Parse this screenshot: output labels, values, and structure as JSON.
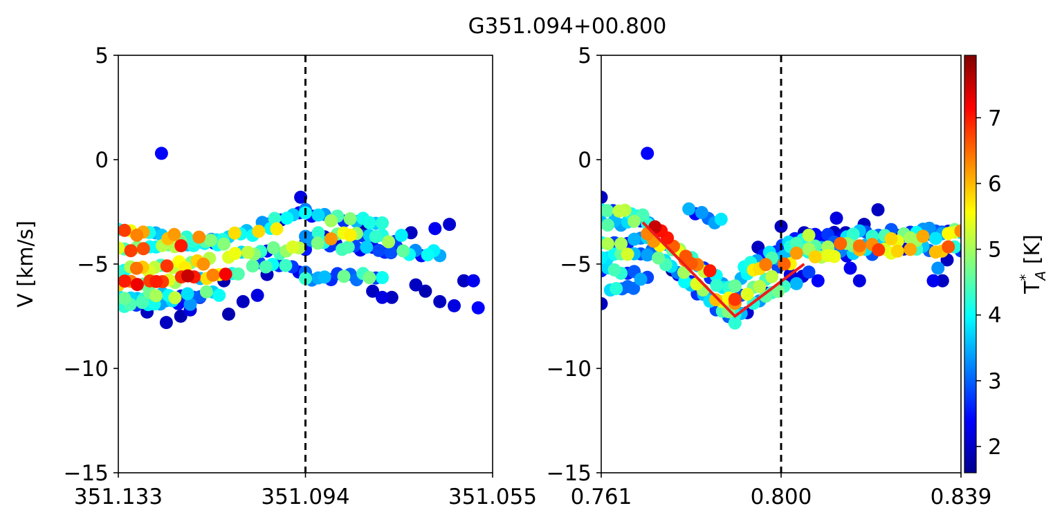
{
  "figure": {
    "title": "G351.094+00.800"
  },
  "chart_data": [
    {
      "type": "scatter",
      "panel": "left",
      "xlabel": "",
      "ylabel": "V [km/s]",
      "xlim": [
        351.133,
        351.055
      ],
      "ylim": [
        -15,
        5
      ],
      "xticks": [
        "351.133",
        "351.094",
        "351.055"
      ],
      "yticks": [
        "5",
        "0",
        "−5",
        "−10",
        "−15"
      ],
      "vline_x": 351.094,
      "grid": false,
      "colormap": "jet",
      "bands": [
        {
          "x0": 351.133,
          "x1": 351.111,
          "y0": -3.4,
          "y1": -4.0,
          "tmin": 2.5,
          "tmax": 6.8
        },
        {
          "x0": 351.133,
          "x1": 351.116,
          "y0": -4.4,
          "y1": -4.0,
          "tmin": 3.5,
          "tmax": 7.2
        },
        {
          "x0": 351.133,
          "x1": 351.114,
          "y0": -5.3,
          "y1": -4.9,
          "tmin": 3.0,
          "tmax": 7.0
        },
        {
          "x0": 351.133,
          "x1": 351.108,
          "y0": -5.9,
          "y1": -5.5,
          "tmin": 3.5,
          "tmax": 7.5
        },
        {
          "x0": 351.133,
          "x1": 351.112,
          "y0": -6.6,
          "y1": -6.4,
          "tmin": 2.5,
          "tmax": 5.5
        },
        {
          "x0": 351.133,
          "x1": 351.118,
          "y0": -6.9,
          "y1": -6.8,
          "tmin": 2.0,
          "tmax": 4.5
        },
        {
          "x0": 351.115,
          "x1": 351.1,
          "y0": -4.0,
          "y1": -3.2,
          "tmin": 2.5,
          "tmax": 6.0
        },
        {
          "x0": 351.11,
          "x1": 351.094,
          "y0": -4.6,
          "y1": -4.2,
          "tmin": 2.0,
          "tmax": 5.5
        },
        {
          "x0": 351.105,
          "x1": 351.094,
          "y0": -5.0,
          "y1": -5.3,
          "tmin": 2.0,
          "tmax": 4.8
        },
        {
          "x0": 351.103,
          "x1": 351.094,
          "y0": -3.0,
          "y1": -2.5,
          "tmin": 2.0,
          "tmax": 4.5
        },
        {
          "x0": 351.094,
          "x1": 351.078,
          "y0": -2.6,
          "y1": -3.1,
          "tmin": 2.0,
          "tmax": 5.0
        },
        {
          "x0": 351.094,
          "x1": 351.074,
          "y0": -3.6,
          "y1": -3.8,
          "tmin": 2.0,
          "tmax": 6.3
        },
        {
          "x0": 351.094,
          "x1": 351.066,
          "y0": -4.0,
          "y1": -4.5,
          "tmin": 2.0,
          "tmax": 4.8
        },
        {
          "x0": 351.094,
          "x1": 351.078,
          "y0": -5.6,
          "y1": -5.6,
          "tmin": 2.5,
          "tmax": 4.8
        }
      ],
      "points": [
        {
          "x": 351.124,
          "y": 0.3,
          "t": 2.4
        },
        {
          "x": 351.127,
          "y": -7.3,
          "t": 2.0
        },
        {
          "x": 351.123,
          "y": -7.8,
          "t": 2.0
        },
        {
          "x": 351.12,
          "y": -7.5,
          "t": 1.9
        },
        {
          "x": 351.118,
          "y": -7.2,
          "t": 2.2
        },
        {
          "x": 351.116,
          "y": -6.6,
          "t": 2.0
        },
        {
          "x": 351.113,
          "y": -4.0,
          "t": 2.5
        },
        {
          "x": 351.111,
          "y": -5.8,
          "t": 1.9
        },
        {
          "x": 351.11,
          "y": -7.4,
          "t": 1.9
        },
        {
          "x": 351.107,
          "y": -6.8,
          "t": 2.0
        },
        {
          "x": 351.104,
          "y": -6.5,
          "t": 2.2
        },
        {
          "x": 351.102,
          "y": -5.5,
          "t": 2.0
        },
        {
          "x": 351.095,
          "y": -1.8,
          "t": 2.2
        },
        {
          "x": 351.082,
          "y": -3.2,
          "t": 1.9
        },
        {
          "x": 351.08,
          "y": -6.3,
          "t": 2.0
        },
        {
          "x": 351.078,
          "y": -6.6,
          "t": 2.2
        },
        {
          "x": 351.076,
          "y": -6.6,
          "t": 2.0
        },
        {
          "x": 351.072,
          "y": -3.5,
          "t": 2.0
        },
        {
          "x": 351.071,
          "y": -6.0,
          "t": 2.0
        },
        {
          "x": 351.069,
          "y": -6.3,
          "t": 1.9
        },
        {
          "x": 351.067,
          "y": -3.3,
          "t": 2.3
        },
        {
          "x": 351.066,
          "y": -6.8,
          "t": 2.0
        },
        {
          "x": 351.064,
          "y": -3.1,
          "t": 2.1
        },
        {
          "x": 351.063,
          "y": -7.0,
          "t": 2.2
        },
        {
          "x": 351.061,
          "y": -5.8,
          "t": 2.0
        },
        {
          "x": 351.059,
          "y": -5.8,
          "t": 2.3
        },
        {
          "x": 351.058,
          "y": -7.1,
          "t": 2.4
        }
      ]
    },
    {
      "type": "scatter",
      "panel": "right",
      "xlabel": "",
      "ylabel": "",
      "xlim": [
        0.761,
        0.839
      ],
      "ylim": [
        -15,
        5
      ],
      "xticks": [
        "0.761",
        "0.800",
        "0.839"
      ],
      "yticks": [
        "5",
        "0",
        "−5",
        "−10",
        "−15"
      ],
      "vline_x": 0.8,
      "grid": false,
      "colormap": "jet",
      "fit_line": {
        "x": [
          0.77,
          0.79,
          0.805
        ],
        "y": [
          -3.0,
          -7.5,
          -5.0
        ],
        "color": "#ee1c1c"
      },
      "bands": [
        {
          "x0": 0.761,
          "x1": 0.77,
          "y0": -2.4,
          "y1": -2.6,
          "tmin": 2.5,
          "tmax": 5.5
        },
        {
          "x0": 0.761,
          "x1": 0.771,
          "y0": -3.1,
          "y1": -3.1,
          "tmin": 2.0,
          "tmax": 5.0
        },
        {
          "x0": 0.761,
          "x1": 0.771,
          "y0": -3.9,
          "y1": -3.9,
          "tmin": 2.5,
          "tmax": 5.5
        },
        {
          "x0": 0.761,
          "x1": 0.771,
          "y0": -4.6,
          "y1": -4.6,
          "tmin": 2.5,
          "tmax": 5.5
        },
        {
          "x0": 0.761,
          "x1": 0.771,
          "y0": -5.3,
          "y1": -5.6,
          "tmin": 2.5,
          "tmax": 4.8
        },
        {
          "x0": 0.763,
          "x1": 0.768,
          "y0": -6.2,
          "y1": -6.2,
          "tmin": 3.0,
          "tmax": 4.5
        },
        {
          "x0": 0.77,
          "x1": 0.79,
          "y0": -2.6,
          "y1": -6.8,
          "tmin": 2.5,
          "tmax": 7.6
        },
        {
          "x0": 0.771,
          "x1": 0.79,
          "y0": -3.6,
          "y1": -6.2,
          "tmin": 2.5,
          "tmax": 7.0
        },
        {
          "x0": 0.772,
          "x1": 0.79,
          "y0": -4.4,
          "y1": -7.4,
          "tmin": 2.0,
          "tmax": 6.0
        },
        {
          "x0": 0.775,
          "x1": 0.79,
          "y0": -5.2,
          "y1": -7.8,
          "tmin": 1.8,
          "tmax": 4.5
        },
        {
          "x0": 0.78,
          "x1": 0.787,
          "y0": -2.5,
          "y1": -3.0,
          "tmin": 2.0,
          "tmax": 4.0
        },
        {
          "x0": 0.79,
          "x1": 0.806,
          "y0": -6.8,
          "y1": -4.2,
          "tmin": 2.5,
          "tmax": 7.2
        },
        {
          "x0": 0.79,
          "x1": 0.806,
          "y0": -6.0,
          "y1": -3.7,
          "tmin": 3.0,
          "tmax": 6.5
        },
        {
          "x0": 0.79,
          "x1": 0.806,
          "y0": -7.6,
          "y1": -5.4,
          "tmin": 2.0,
          "tmax": 5.0
        },
        {
          "x0": 0.792,
          "x1": 0.803,
          "y0": -5.0,
          "y1": -3.8,
          "tmin": 2.0,
          "tmax": 4.5
        },
        {
          "x0": 0.806,
          "x1": 0.839,
          "y0": -4.2,
          "y1": -3.5,
          "tmin": 2.0,
          "tmax": 6.8
        },
        {
          "x0": 0.806,
          "x1": 0.839,
          "y0": -3.6,
          "y1": -3.4,
          "tmin": 2.0,
          "tmax": 5.0
        },
        {
          "x0": 0.806,
          "x1": 0.839,
          "y0": -4.6,
          "y1": -4.2,
          "tmin": 2.0,
          "tmax": 7.0
        }
      ],
      "points": [
        {
          "x": 0.771,
          "y": 0.3,
          "t": 2.4
        },
        {
          "x": 0.761,
          "y": -1.8,
          "t": 2.0
        },
        {
          "x": 0.761,
          "y": -6.9,
          "t": 2.0
        },
        {
          "x": 0.795,
          "y": -4.2,
          "t": 2.0
        },
        {
          "x": 0.797,
          "y": -6.4,
          "t": 2.0
        },
        {
          "x": 0.8,
          "y": -3.2,
          "t": 2.0
        },
        {
          "x": 0.802,
          "y": -5.5,
          "t": 2.2
        },
        {
          "x": 0.805,
          "y": -3.5,
          "t": 2.0
        },
        {
          "x": 0.808,
          "y": -5.8,
          "t": 2.4
        },
        {
          "x": 0.812,
          "y": -2.8,
          "t": 2.2
        },
        {
          "x": 0.814,
          "y": -3.5,
          "t": 2.0
        },
        {
          "x": 0.815,
          "y": -5.2,
          "t": 2.3
        },
        {
          "x": 0.817,
          "y": -5.8,
          "t": 2.2
        },
        {
          "x": 0.818,
          "y": -3.1,
          "t": 2.0
        },
        {
          "x": 0.821,
          "y": -2.4,
          "t": 2.0
        },
        {
          "x": 0.833,
          "y": -5.8,
          "t": 2.3
        },
        {
          "x": 0.834,
          "y": -5.2,
          "t": 3.3
        },
        {
          "x": 0.835,
          "y": -5.8,
          "t": 2.0
        },
        {
          "x": 0.836,
          "y": -4.8,
          "t": 2.0
        }
      ]
    }
  ],
  "colorbar": {
    "label": "T",
    "label_sup": "*",
    "label_sub": "A",
    "label_unit": " [K]",
    "range": [
      1.6,
      7.95
    ],
    "ticks": [
      "2",
      "3",
      "4",
      "5",
      "6",
      "7"
    ],
    "tick_values": [
      2,
      3,
      4,
      5,
      6,
      7
    ],
    "colormap": "jet"
  }
}
